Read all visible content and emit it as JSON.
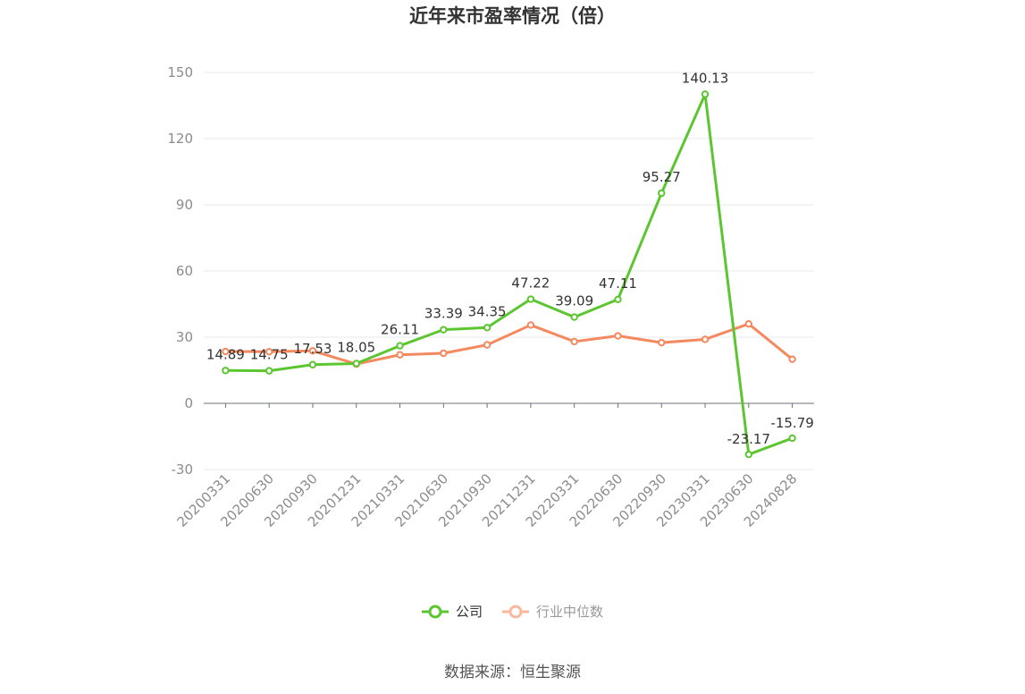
{
  "chart_data": {
    "type": "line",
    "title": "近年来市盈率情况（倍）",
    "x": [
      "20200331",
      "20200630",
      "20200930",
      "20201231",
      "20210331",
      "20210630",
      "20210930",
      "20211231",
      "20220331",
      "20220630",
      "20220930",
      "20230331",
      "20230630",
      "20240828"
    ],
    "ylim": [
      -30,
      150
    ],
    "yticks": [
      "150",
      "120",
      "90",
      "60",
      "30",
      "0",
      "-30"
    ],
    "grid": true,
    "legend_position": "bottom",
    "series": [
      {
        "name": "公司",
        "color": "#5cc631",
        "values": [
          14.89,
          14.75,
          17.53,
          18.05,
          26.11,
          33.39,
          34.35,
          47.22,
          39.09,
          47.11,
          95.27,
          140.13,
          -23.17,
          -15.79
        ],
        "labels": [
          "14.89",
          "14.75",
          "17.53",
          "18.05",
          "26.11",
          "33.39",
          "34.35",
          "47.22",
          "39.09",
          "47.11",
          "95.27",
          "140.13",
          "-23.17",
          "-15.79"
        ]
      },
      {
        "name": "行业中位数",
        "color": "#f4895f",
        "values": [
          23.5,
          23.4,
          23.8,
          17.8,
          22.0,
          22.7,
          26.5,
          35.5,
          28.0,
          30.6,
          27.5,
          29.0,
          36.0,
          20.0
        ]
      }
    ]
  },
  "source": "数据来源：恒生聚源"
}
